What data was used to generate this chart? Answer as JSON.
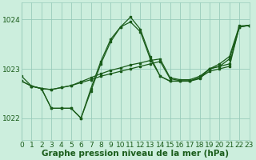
{
  "background_color": "#cceedd",
  "plot_bg_color": "#cceedd",
  "line_color": "#1a5c1a",
  "grid_color": "#99ccbb",
  "ylabel_ticks": [
    1022,
    1023,
    1024
  ],
  "xlim": [
    0,
    23
  ],
  "ylim": [
    1021.55,
    1024.35
  ],
  "xlabel": "Graphe pression niveau de la mer (hPa)",
  "xlabel_fontsize": 7.5,
  "tick_fontsize": 6.5,
  "series": [
    {
      "x": [
        0,
        1,
        2,
        3,
        4,
        5,
        6,
        7,
        8,
        9,
        10,
        11,
        12,
        13,
        14,
        15,
        16,
        17,
        18,
        19,
        20,
        21,
        22,
        23
      ],
      "y": [
        1022.85,
        1022.65,
        1022.6,
        1022.2,
        1022.2,
        1022.2,
        1022.0,
        1022.55,
        1023.1,
        1023.55,
        1023.85,
        1024.05,
        1023.8,
        1023.25,
        1022.85,
        1022.75,
        1022.75,
        1022.75,
        1022.8,
        1023.0,
        1023.05,
        1023.2,
        1023.85,
        1023.88
      ]
    },
    {
      "x": [
        0,
        1,
        2,
        3,
        4,
        5,
        6,
        7,
        8,
        9,
        10,
        11,
        12,
        13,
        14,
        15,
        16,
        17,
        18,
        19,
        20,
        21,
        22,
        23
      ],
      "y": [
        1022.75,
        1022.65,
        1022.6,
        1022.58,
        1022.62,
        1022.66,
        1022.72,
        1022.78,
        1022.85,
        1022.9,
        1022.95,
        1023.0,
        1023.05,
        1023.1,
        1023.15,
        1022.8,
        1022.76,
        1022.76,
        1022.82,
        1022.95,
        1023.0,
        1023.05,
        1023.85,
        1023.88
      ]
    },
    {
      "x": [
        0,
        1,
        2,
        3,
        4,
        5,
        6,
        7,
        8,
        9,
        10,
        11,
        12,
        13,
        14,
        15,
        16,
        17,
        18,
        19,
        20,
        21,
        22,
        23
      ],
      "y": [
        1022.75,
        1022.65,
        1022.6,
        1022.58,
        1022.62,
        1022.66,
        1022.74,
        1022.82,
        1022.9,
        1022.97,
        1023.02,
        1023.08,
        1023.12,
        1023.17,
        1023.2,
        1022.82,
        1022.78,
        1022.78,
        1022.85,
        1023.0,
        1023.05,
        1023.1,
        1023.85,
        1023.88
      ]
    },
    {
      "x": [
        1,
        2,
        3,
        4,
        5,
        6,
        7,
        8,
        9,
        10,
        11,
        12,
        13,
        14,
        15,
        16,
        17,
        18,
        19,
        20,
        21,
        22,
        23
      ],
      "y": [
        1022.65,
        1022.6,
        1022.2,
        1022.2,
        1022.2,
        1022.0,
        1022.6,
        1023.15,
        1023.6,
        1023.85,
        1023.95,
        1023.75,
        1023.2,
        1022.85,
        1022.75,
        1022.75,
        1022.75,
        1022.82,
        1023.0,
        1023.1,
        1023.25,
        1023.87,
        1023.88
      ]
    }
  ]
}
